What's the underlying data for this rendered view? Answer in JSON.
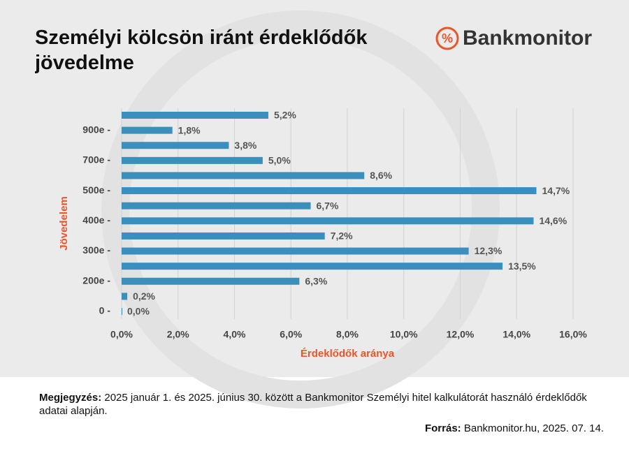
{
  "chart_data": {
    "type": "bar",
    "orientation": "horizontal",
    "title": "Személyi kölcsön iránt érdeklődők jövedelme",
    "logo": {
      "symbol": "%",
      "name": "Bankmonitor"
    },
    "ylabel": "Jövedelem",
    "xlabel": "Érdeklődők aránya",
    "categories": [
      null,
      "900e -",
      null,
      "700e -",
      null,
      "500e -",
      null,
      "400e -",
      null,
      "300e -",
      null,
      "200e -",
      null,
      "0 -"
    ],
    "values": [
      5.2,
      1.8,
      3.8,
      5.0,
      8.6,
      14.7,
      6.7,
      14.6,
      7.2,
      12.3,
      13.5,
      6.3,
      0.2,
      0.0
    ],
    "value_labels": [
      "5,2%",
      "1,8%",
      "3,8%",
      "5,0%",
      "8,6%",
      "14,7%",
      "6,7%",
      "14,6%",
      "7,2%",
      "12,3%",
      "13,5%",
      "6,3%",
      "0,2%",
      "0,0%"
    ],
    "color": "#3a8fbd",
    "xlim": [
      0,
      16
    ],
    "xticks": [
      {
        "value": 0,
        "label": "0,0%"
      },
      {
        "value": 2,
        "label": "2,0%"
      },
      {
        "value": 4,
        "label": "4,0%"
      },
      {
        "value": 6,
        "label": "6,0%"
      },
      {
        "value": 8,
        "label": "8,0%"
      },
      {
        "value": 10,
        "label": "10,0%"
      },
      {
        "value": 12,
        "label": "12,0%"
      },
      {
        "value": 14,
        "label": "14,0%"
      },
      {
        "value": 16,
        "label": "16,0%"
      }
    ],
    "grid": true,
    "note": {
      "label": "Megjegyzés:",
      "text": "2025 január 1. és 2025. június 30. között a Bankmonitor Személyi hitel kalkulátorát használó érdeklődők adatai alapján."
    },
    "source": {
      "label": "Forrás:",
      "text": "Bankmonitor.hu, 2025. 07. 14."
    }
  }
}
